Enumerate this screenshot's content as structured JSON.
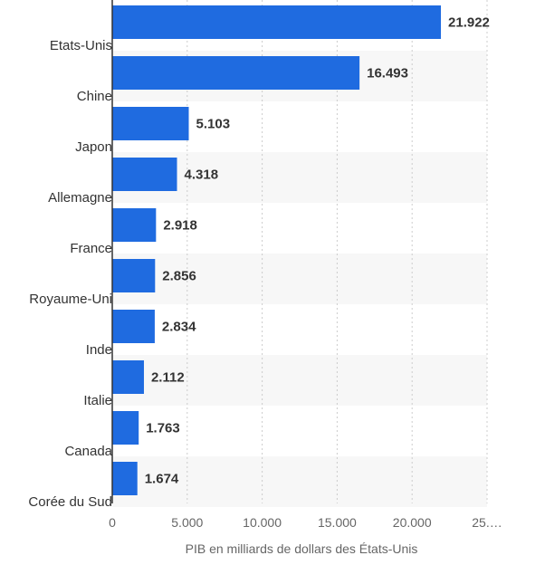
{
  "chart_data": {
    "type": "bar",
    "orientation": "horizontal",
    "categories": [
      "Etats-Unis",
      "Chine",
      "Japon",
      "Allemagne",
      "France",
      "Royaume-Uni",
      "Inde",
      "Italie",
      "Canada",
      "Corée du Sud"
    ],
    "values": [
      21922,
      16493,
      5103,
      4318,
      2918,
      2856,
      2834,
      2112,
      1763,
      1674
    ],
    "value_labels": [
      "21.922",
      "16.493",
      "5.103",
      "4.318",
      "2.918",
      "2.856",
      "2.834",
      "2.112",
      "1.763",
      "1.674"
    ],
    "xlabel": "PIB en milliards de dollars des États-Unis",
    "ylabel": "",
    "xlim": [
      0,
      25000
    ],
    "x_ticks": [
      0,
      5000,
      10000,
      15000,
      20000,
      25000
    ],
    "x_tick_labels": [
      "0",
      "5.000",
      "10.000",
      "15.000",
      "20.000",
      "25.…"
    ],
    "grid": true,
    "colors": {
      "bar": "#1f6be0",
      "band": "#f7f7f7",
      "grid": "#cccccc",
      "axis": "#333333"
    }
  }
}
